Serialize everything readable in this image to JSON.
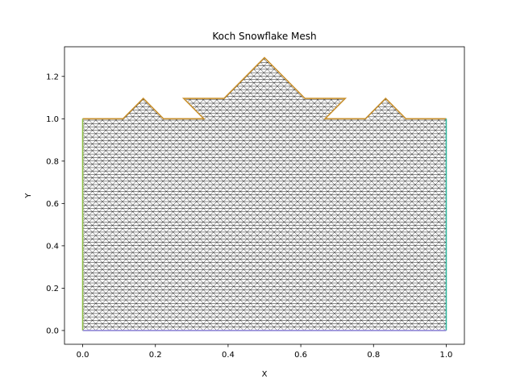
{
  "chart_data": {
    "type": "mesh",
    "title": "Koch Snowflake Mesh",
    "xlabel": "X",
    "ylabel": "Y",
    "xlim": [
      -0.05,
      1.05
    ],
    "ylim": [
      -0.065,
      1.34
    ],
    "xticks": [
      0.0,
      0.2,
      0.4,
      0.6,
      0.8,
      1.0
    ],
    "xtick_labels": [
      "0.0",
      "0.2",
      "0.4",
      "0.6",
      "0.8",
      "1.0"
    ],
    "yticks": [
      0.0,
      0.2,
      0.4,
      0.6,
      0.8,
      1.0,
      1.2
    ],
    "ytick_labels": [
      "0.0",
      "0.2",
      "0.4",
      "0.6",
      "0.8",
      "1.0",
      "1.2"
    ],
    "grid": false,
    "mesh_edge_spacing": 0.0185,
    "mesh_color": "#000000",
    "mesh_fill": "#ffffff",
    "boundaries": [
      {
        "name": "top",
        "color": "#c8902e",
        "points": [
          [
            0.0,
            1.0
          ],
          [
            0.111,
            1.0
          ],
          [
            0.1667,
            1.0962
          ],
          [
            0.2222,
            1.0
          ],
          [
            0.3333,
            1.0
          ],
          [
            0.2778,
            1.0962
          ],
          [
            0.3889,
            1.0962
          ],
          [
            0.4444,
            1.1924
          ],
          [
            0.5,
            1.2886
          ],
          [
            0.5556,
            1.1924
          ],
          [
            0.6111,
            1.0962
          ],
          [
            0.7222,
            1.0962
          ],
          [
            0.6667,
            1.0
          ],
          [
            0.7778,
            1.0
          ],
          [
            0.8333,
            1.0962
          ],
          [
            0.8889,
            1.0
          ],
          [
            1.0,
            1.0
          ]
        ]
      },
      {
        "name": "left",
        "color": "#8fbf45",
        "points": [
          [
            0.0,
            0.0
          ],
          [
            0.0,
            1.0
          ]
        ]
      },
      {
        "name": "right",
        "color": "#2fb59c",
        "points": [
          [
            1.0,
            0.0
          ],
          [
            1.0,
            1.0
          ]
        ]
      },
      {
        "name": "bottom",
        "color": "#8f86d6",
        "points": [
          [
            0.0,
            0.0
          ],
          [
            1.0,
            0.0
          ]
        ]
      }
    ]
  }
}
